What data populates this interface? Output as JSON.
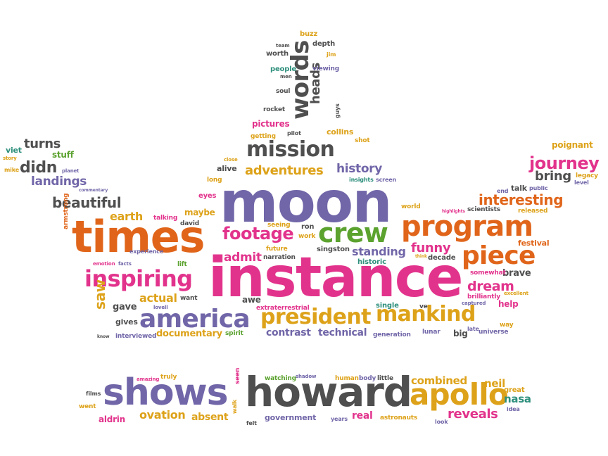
{
  "palette": {
    "purple": "#7066a8",
    "pink": "#e2338c",
    "orange": "#e0651a",
    "gold": "#dda219",
    "green": "#5ba22f",
    "gray": "#4f4f4f",
    "teal": "#2e8f7c"
  },
  "words": [
    {
      "text": "moon",
      "color": "purple"
    },
    {
      "text": "instance",
      "color": "pink"
    },
    {
      "text": "times",
      "color": "orange"
    },
    {
      "text": "howard",
      "color": "gray"
    },
    {
      "text": "shows",
      "color": "purple"
    },
    {
      "text": "apollo",
      "color": "gold"
    },
    {
      "text": "program",
      "color": "orange"
    },
    {
      "text": "america",
      "color": "purple"
    },
    {
      "text": "president",
      "color": "gold"
    },
    {
      "text": "mankind",
      "color": "gold"
    },
    {
      "text": "piece",
      "color": "orange"
    },
    {
      "text": "crew",
      "color": "green"
    },
    {
      "text": "mission",
      "color": "gray"
    },
    {
      "text": "inspiring",
      "color": "pink"
    },
    {
      "text": "words",
      "color": "gray"
    },
    {
      "text": "footage",
      "color": "pink"
    },
    {
      "text": "journey",
      "color": "pink"
    },
    {
      "text": "interesting",
      "color": "orange"
    },
    {
      "text": "beautiful",
      "color": "gray"
    },
    {
      "text": "adventures",
      "color": "gold"
    },
    {
      "text": "history",
      "color": "purple"
    },
    {
      "text": "landings",
      "color": "purple"
    },
    {
      "text": "didn",
      "color": "gray"
    },
    {
      "text": "turns",
      "color": "gray"
    },
    {
      "text": "dream",
      "color": "pink"
    },
    {
      "text": "documentary",
      "color": "gold"
    },
    {
      "text": "actual",
      "color": "gold"
    },
    {
      "text": "earth",
      "color": "gold"
    },
    {
      "text": "saw",
      "color": "gold"
    },
    {
      "text": "contrast",
      "color": "purple"
    },
    {
      "text": "technical",
      "color": "purple"
    },
    {
      "text": "standing",
      "color": "purple"
    },
    {
      "text": "funny",
      "color": "pink"
    },
    {
      "text": "admit",
      "color": "pink"
    },
    {
      "text": "bring",
      "color": "gray"
    },
    {
      "text": "poignant",
      "color": "gold"
    },
    {
      "text": "brave",
      "color": "gray"
    },
    {
      "text": "heads",
      "color": "gray"
    },
    {
      "text": "ovation",
      "color": "gold"
    },
    {
      "text": "reveals",
      "color": "pink"
    },
    {
      "text": "combined",
      "color": "gold"
    },
    {
      "text": "neil",
      "color": "gold"
    },
    {
      "text": "nasa",
      "color": "teal"
    },
    {
      "text": "aldrin",
      "color": "pink"
    },
    {
      "text": "absent",
      "color": "gold"
    },
    {
      "text": "government",
      "color": "purple"
    },
    {
      "text": "real",
      "color": "pink"
    },
    {
      "text": "gives",
      "color": "gray"
    },
    {
      "text": "gave",
      "color": "gray"
    },
    {
      "text": "maybe",
      "color": "gold"
    },
    {
      "text": "pictures",
      "color": "pink"
    },
    {
      "text": "collins",
      "color": "gold"
    },
    {
      "text": "awe",
      "color": "gray"
    },
    {
      "text": "help",
      "color": "pink"
    },
    {
      "text": "talk",
      "color": "gray"
    },
    {
      "text": "festival",
      "color": "orange"
    },
    {
      "text": "decade",
      "color": "gray"
    },
    {
      "text": "singston",
      "color": "gray"
    },
    {
      "text": "big",
      "color": "gray"
    },
    {
      "text": "alive",
      "color": "gray"
    },
    {
      "text": "stuff",
      "color": "green"
    },
    {
      "text": "viet",
      "color": "teal"
    },
    {
      "text": "mike",
      "color": "gold"
    },
    {
      "text": "story",
      "color": "gold"
    },
    {
      "text": "planet",
      "color": "purple"
    },
    {
      "text": "commentary",
      "color": "purple"
    },
    {
      "text": "armstrong",
      "color": "orange"
    },
    {
      "text": "emotion",
      "color": "pink"
    },
    {
      "text": "facts",
      "color": "purple"
    },
    {
      "text": "experience",
      "color": "purple"
    },
    {
      "text": "eyes",
      "color": "pink"
    },
    {
      "text": "long",
      "color": "gold"
    },
    {
      "text": "close",
      "color": "gold"
    },
    {
      "text": "talking",
      "color": "pink"
    },
    {
      "text": "david",
      "color": "gray"
    },
    {
      "text": "lift",
      "color": "green"
    },
    {
      "text": "lovell",
      "color": "purple"
    },
    {
      "text": "want",
      "color": "gray"
    },
    {
      "text": "know",
      "color": "gray"
    },
    {
      "text": "interviewed",
      "color": "purple"
    },
    {
      "text": "spirit",
      "color": "green"
    },
    {
      "text": "extraterrestrial",
      "color": "pink"
    },
    {
      "text": "generation",
      "color": "purple"
    },
    {
      "text": "single",
      "color": "teal"
    },
    {
      "text": "lunar",
      "color": "purple"
    },
    {
      "text": "universe",
      "color": "purple"
    },
    {
      "text": "late",
      "color": "purple"
    },
    {
      "text": "way",
      "color": "gold"
    },
    {
      "text": "ve",
      "color": "gray"
    },
    {
      "text": "captured",
      "color": "purple"
    },
    {
      "text": "brilliantly",
      "color": "pink"
    },
    {
      "text": "excellent",
      "color": "gold"
    },
    {
      "text": "somewhat",
      "color": "pink"
    },
    {
      "text": "think",
      "color": "gold"
    },
    {
      "text": "historic",
      "color": "teal"
    },
    {
      "text": "narration",
      "color": "gray"
    },
    {
      "text": "future",
      "color": "gold"
    },
    {
      "text": "work",
      "color": "gold"
    },
    {
      "text": "seeing",
      "color": "gold"
    },
    {
      "text": "ron",
      "color": "gray"
    },
    {
      "text": "world",
      "color": "gold"
    },
    {
      "text": "highlights",
      "color": "pink"
    },
    {
      "text": "scientists",
      "color": "gray"
    },
    {
      "text": "released",
      "color": "gold"
    },
    {
      "text": "public",
      "color": "purple"
    },
    {
      "text": "level",
      "color": "purple"
    },
    {
      "text": "legacy",
      "color": "gold"
    },
    {
      "text": "end",
      "color": "purple"
    },
    {
      "text": "insights",
      "color": "teal"
    },
    {
      "text": "screen",
      "color": "purple"
    },
    {
      "text": "shot",
      "color": "gold"
    },
    {
      "text": "guys",
      "color": "gray"
    },
    {
      "text": "getting",
      "color": "gold"
    },
    {
      "text": "pilot",
      "color": "gray"
    },
    {
      "text": "rocket",
      "color": "gray"
    },
    {
      "text": "soul",
      "color": "gray"
    },
    {
      "text": "people",
      "color": "teal"
    },
    {
      "text": "men",
      "color": "gray"
    },
    {
      "text": "worth",
      "color": "gray"
    },
    {
      "text": "team",
      "color": "gray"
    },
    {
      "text": "buzz",
      "color": "gold"
    },
    {
      "text": "depth",
      "color": "gray"
    },
    {
      "text": "jim",
      "color": "gold"
    },
    {
      "text": "viewing",
      "color": "purple"
    },
    {
      "text": "films",
      "color": "gray"
    },
    {
      "text": "went",
      "color": "gold"
    },
    {
      "text": "amazing",
      "color": "pink"
    },
    {
      "text": "truly",
      "color": "gold"
    },
    {
      "text": "seen",
      "color": "pink"
    },
    {
      "text": "walk",
      "color": "gold"
    },
    {
      "text": "felt",
      "color": "gray"
    },
    {
      "text": "watching",
      "color": "green"
    },
    {
      "text": "shadow",
      "color": "purple"
    },
    {
      "text": "human",
      "color": "gold"
    },
    {
      "text": "body",
      "color": "purple"
    },
    {
      "text": "little",
      "color": "gray"
    },
    {
      "text": "years",
      "color": "purple"
    },
    {
      "text": "astronauts",
      "color": "gold"
    },
    {
      "text": "look",
      "color": "purple"
    },
    {
      "text": "idea",
      "color": "purple"
    },
    {
      "text": "great",
      "color": "gold"
    }
  ]
}
